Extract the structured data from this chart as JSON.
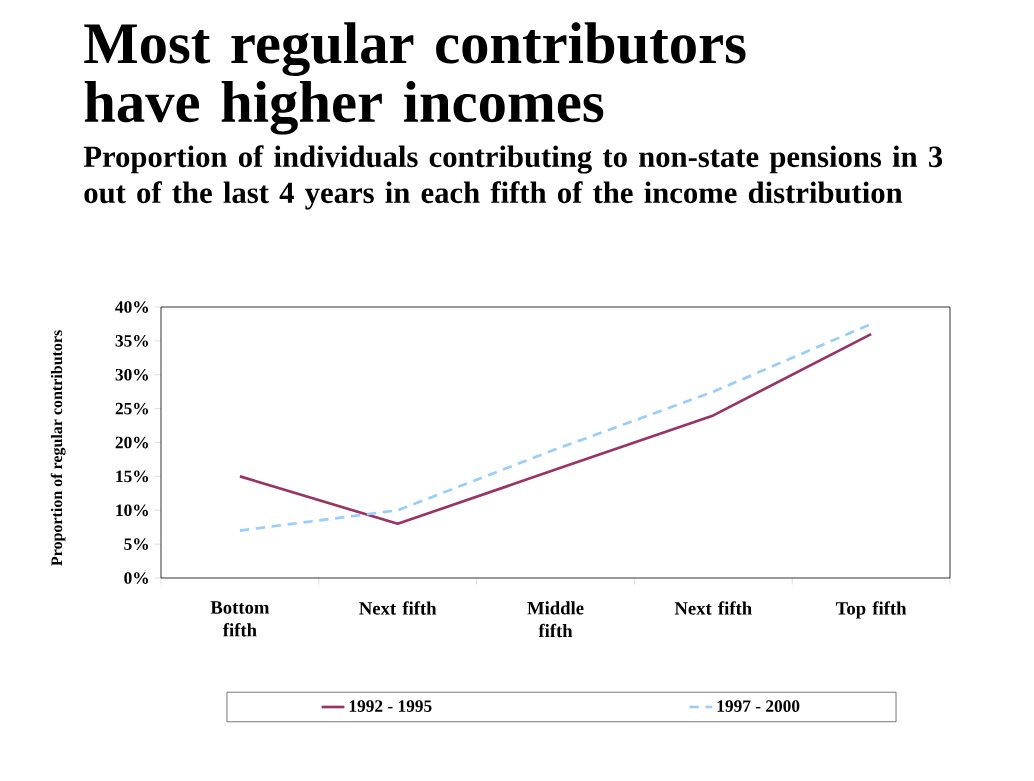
{
  "chart_data": {
    "type": "line",
    "title": "Most regular contributors have higher incomes",
    "subtitle": "Proportion of individuals contributing to  non-state pensions in 3 out of the last 4 years in each fifth of the income distribution",
    "ylabel": "Proportion of regular contributors",
    "categories": [
      "Bottom fifth",
      "Next fifth",
      "Middle fifth",
      "Next fifth",
      "Top fifth"
    ],
    "series": [
      {
        "name": "1992 - 1995",
        "color": "#993366",
        "line_style": "solid",
        "values": [
          15,
          8,
          16,
          24,
          36
        ]
      },
      {
        "name": "1997 - 2000",
        "color": "#99ccff",
        "line_style": "dashed",
        "values": [
          7,
          10,
          19,
          27.5,
          37.5
        ]
      }
    ],
    "ylim": [
      0,
      40
    ],
    "yticks": [
      {
        "value": 0,
        "label": "0%"
      },
      {
        "value": 5,
        "label": "5%"
      },
      {
        "value": 10,
        "label": "10%"
      },
      {
        "value": 15,
        "label": "15%"
      },
      {
        "value": 20,
        "label": "20%"
      },
      {
        "value": 25,
        "label": "25%"
      },
      {
        "value": 30,
        "label": "30%"
      },
      {
        "value": 35,
        "label": "35%"
      },
      {
        "value": 40,
        "label": "40%"
      }
    ],
    "marker": "none",
    "legend": "bottom"
  }
}
